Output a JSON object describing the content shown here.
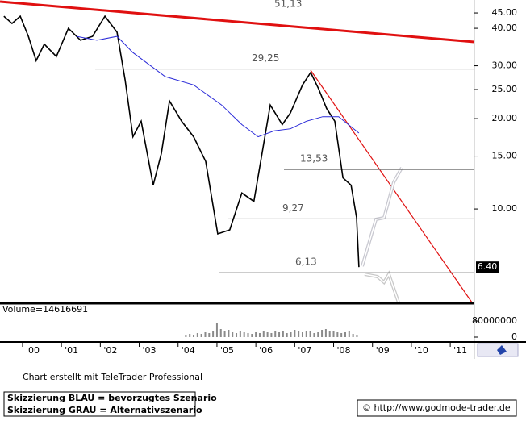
{
  "chart_data": [
    {
      "type": "line",
      "log_scale": true,
      "xlim": [
        1999.42,
        2011.62
      ],
      "ylim": [
        4.88,
        49.7
      ],
      "xticks": [
        {
          "value": 2000,
          "label": "'00"
        },
        {
          "value": 2001,
          "label": "'01"
        },
        {
          "value": 2002,
          "label": "'02"
        },
        {
          "value": 2003,
          "label": "'03"
        },
        {
          "value": 2004,
          "label": "'04"
        },
        {
          "value": 2005,
          "label": "'05"
        },
        {
          "value": 2006,
          "label": "'06"
        },
        {
          "value": 2007,
          "label": "'07"
        },
        {
          "value": 2008,
          "label": "'08"
        },
        {
          "value": 2009,
          "label": "'09"
        },
        {
          "value": 2010,
          "label": "'10"
        },
        {
          "value": 2011,
          "label": "'11"
        }
      ],
      "yticks": [
        {
          "value": 45,
          "label": "45.00"
        },
        {
          "value": 40,
          "label": "40.00"
        },
        {
          "value": 30,
          "label": "30.00"
        },
        {
          "value": 25,
          "label": "25.00"
        },
        {
          "value": 20,
          "label": "20.00"
        },
        {
          "value": 15,
          "label": "15.00"
        },
        {
          "value": 10,
          "label": "10.00"
        }
      ],
      "series": [
        {
          "color": "#000000",
          "x": [
            1999.52,
            1999.73,
            1999.94,
            2000.15,
            2000.35,
            2000.56,
            2000.87,
            2001.18,
            2001.49,
            2001.8,
            2002.12,
            2002.43,
            2002.64,
            2002.84,
            2003.05,
            2003.36,
            2003.57,
            2003.78,
            2004.09,
            2004.4,
            2004.71,
            2005.02,
            2005.33,
            2005.64,
            2005.95,
            2006.16,
            2006.37,
            2006.68,
            2006.89,
            2007.2,
            2007.41,
            2007.61,
            2007.82,
            2008.03,
            2008.24,
            2008.45,
            2008.59,
            2008.65
          ],
          "values": [
            43.9,
            41.5,
            43.9,
            37.6,
            31.2,
            35.4,
            32.2,
            40.0,
            36.5,
            37.6,
            43.9,
            38.8,
            26.8,
            17.4,
            19.6,
            12.0,
            15.3,
            22.9,
            19.6,
            17.4,
            14.4,
            8.26,
            8.52,
            11.3,
            10.6,
            15.3,
            22.2,
            19.1,
            20.9,
            25.9,
            28.5,
            25.2,
            21.6,
            19.6,
            12.7,
            12.0,
            9.35,
            6.4
          ]
        },
        {
          "color": "#2a2ad8",
          "x": [
            2001.39,
            2001.91,
            2002.43,
            2002.84,
            2003.67,
            2004.4,
            2005.12,
            2005.64,
            2006.06,
            2006.47,
            2006.89,
            2007.3,
            2007.72,
            2008.13,
            2008.65
          ],
          "values": [
            37.6,
            36.5,
            37.6,
            33.2,
            27.6,
            25.9,
            22.2,
            19.1,
            17.4,
            18.2,
            18.5,
            19.6,
            20.3,
            20.3,
            17.9
          ]
        }
      ],
      "levels": [
        {
          "value": 51.13,
          "label": "51,13"
        },
        {
          "value": 29.25,
          "label": "29,25"
        },
        {
          "value": 13.53,
          "label": "13,53"
        },
        {
          "value": 9.27,
          "label": "9,27"
        },
        {
          "value": 6.13,
          "label": "6,13"
        }
      ],
      "last_price": {
        "value": 6.4,
        "label": "6.40"
      }
    },
    {
      "type": "bar",
      "title": "Volume=14616691",
      "color": "#8a8a8a",
      "x": [
        2004.2,
        2004.3,
        2004.4,
        2004.5,
        2004.6,
        2004.7,
        2004.8,
        2004.9,
        2005.0,
        2005.1,
        2005.2,
        2005.3,
        2005.4,
        2005.5,
        2005.6,
        2005.7,
        2005.8,
        2005.9,
        2006.0,
        2006.1,
        2006.2,
        2006.3,
        2006.4,
        2006.5,
        2006.6,
        2006.7,
        2006.8,
        2006.9,
        2007.0,
        2007.1,
        2007.2,
        2007.3,
        2007.4,
        2007.5,
        2007.6,
        2007.7,
        2007.8,
        2007.9,
        2008.0,
        2008.1,
        2008.2,
        2008.3,
        2008.4,
        2008.5,
        2008.6
      ],
      "values": [
        12000000,
        16000000,
        12000000,
        20000000,
        16000000,
        24000000,
        20000000,
        32000000,
        72000000,
        40000000,
        28000000,
        36000000,
        24000000,
        20000000,
        32000000,
        24000000,
        20000000,
        16000000,
        24000000,
        20000000,
        28000000,
        24000000,
        20000000,
        32000000,
        24000000,
        28000000,
        20000000,
        24000000,
        36000000,
        28000000,
        24000000,
        32000000,
        28000000,
        20000000,
        24000000,
        36000000,
        40000000,
        32000000,
        28000000,
        24000000,
        20000000,
        24000000,
        28000000,
        16000000,
        12000000
      ],
      "xlim": [
        1999.42,
        2011.62
      ],
      "ylim": [
        0,
        152000000
      ],
      "yticks": [
        80000000,
        0
      ]
    }
  ],
  "footer": {
    "credit": "Chart erstellt mit TeleTrader Professional",
    "legend": [
      "Skizzierung BLAU = bevorzugtes Szenario",
      "Skizzierung GRAU = Alternativszenario"
    ],
    "url": "© http://www.godmode-trader.de"
  }
}
